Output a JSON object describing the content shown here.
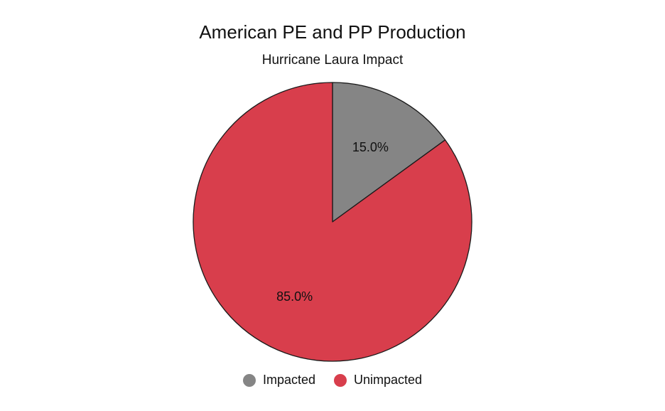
{
  "chart_data": {
    "type": "pie",
    "title": "American PE and PP Production",
    "subtitle": "Hurricane Laura Impact",
    "categories": [
      "Impacted",
      "Unimpacted"
    ],
    "values": [
      15.0,
      85.0
    ],
    "value_labels": [
      "15.0%",
      "85.0%"
    ],
    "colors": [
      "#858585",
      "#d83e4c"
    ],
    "start_angle": "12 o'clock",
    "direction": "clockwise",
    "legend_position": "bottom-center"
  }
}
